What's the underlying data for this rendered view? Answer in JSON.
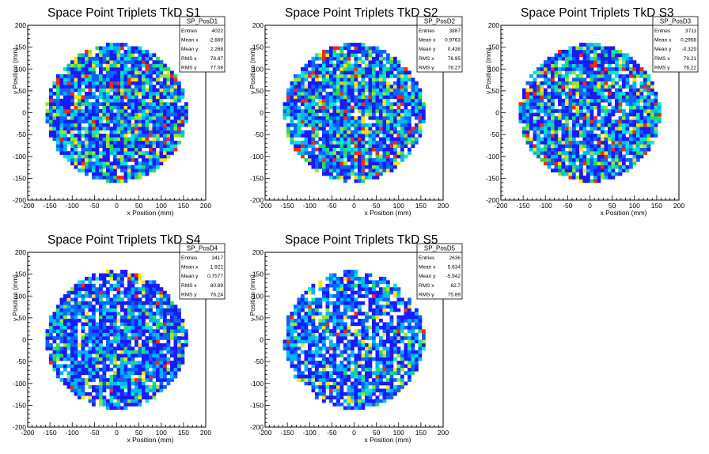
{
  "chart_data": [
    {
      "type": "heatmap",
      "title": "Space Point Triplets TkD S1",
      "xlabel": "x Position (mm)",
      "ylabel": "y Position (mm)",
      "xlim": [
        -200,
        200
      ],
      "ylim": [
        -200,
        200
      ],
      "xticks": [
        -200,
        -150,
        -100,
        -50,
        0,
        50,
        100,
        150,
        200
      ],
      "yticks": [
        -200,
        -150,
        -100,
        -50,
        0,
        50,
        100,
        150,
        200
      ],
      "stats": {
        "name": "SP_PosD1",
        "rows": [
          {
            "label": "Entries",
            "value": "4022"
          },
          {
            "label": "Mean x",
            "value": "-2.669"
          },
          {
            "label": "Mean y",
            "value": "2.268"
          },
          {
            "label": "RMS x",
            "value": "78.87"
          },
          {
            "label": "RMS y",
            "value": "77.08"
          }
        ]
      },
      "distribution": {
        "shape": "disk",
        "radius": 158,
        "bin_width": 8,
        "mean_x": -2.669,
        "mean_y": 2.268,
        "entries": 4022
      }
    },
    {
      "type": "heatmap",
      "title": "Space Point Triplets TkD S2",
      "xlabel": "x Position (mm)",
      "ylabel": "y Position (mm)",
      "xlim": [
        -200,
        200
      ],
      "ylim": [
        -200,
        200
      ],
      "xticks": [
        -200,
        -150,
        -100,
        -50,
        0,
        50,
        100,
        150,
        200
      ],
      "yticks": [
        -200,
        -150,
        -100,
        -50,
        0,
        50,
        100,
        150,
        200
      ],
      "stats": {
        "name": "SP_PosD2",
        "rows": [
          {
            "label": "Entries",
            "value": "3887"
          },
          {
            "label": "Mean x",
            "value": "0.9763"
          },
          {
            "label": "Mean y",
            "value": "0.438"
          },
          {
            "label": "RMS x",
            "value": "78.95"
          },
          {
            "label": "RMS y",
            "value": "76.27"
          }
        ]
      },
      "distribution": {
        "shape": "disk",
        "radius": 158,
        "bin_width": 8,
        "mean_x": 0.9763,
        "mean_y": 0.438,
        "entries": 3887
      }
    },
    {
      "type": "heatmap",
      "title": "Space Point Triplets TkD S3",
      "xlabel": "x Position (mm)",
      "ylabel": "y Position (mm)",
      "xlim": [
        -200,
        200
      ],
      "ylim": [
        -200,
        200
      ],
      "xticks": [
        -200,
        -150,
        -100,
        -50,
        0,
        50,
        100,
        150,
        200
      ],
      "yticks": [
        -200,
        -150,
        -100,
        -50,
        0,
        50,
        100,
        150,
        200
      ],
      "stats": {
        "name": "SP_PosD3",
        "rows": [
          {
            "label": "Entries",
            "value": "3711"
          },
          {
            "label": "Mean x",
            "value": "0.2958"
          },
          {
            "label": "Mean y",
            "value": "-0.329"
          },
          {
            "label": "RMS x",
            "value": "79.21"
          },
          {
            "label": "RMS y",
            "value": "76.22"
          }
        ]
      },
      "distribution": {
        "shape": "disk",
        "radius": 158,
        "bin_width": 8,
        "mean_x": 0.2958,
        "mean_y": -0.329,
        "entries": 3711
      }
    },
    {
      "type": "heatmap",
      "title": "Space Point Triplets TkD S4",
      "xlabel": "x Position (mm)",
      "ylabel": "y Position (mm)",
      "xlim": [
        -200,
        200
      ],
      "ylim": [
        -200,
        200
      ],
      "xticks": [
        -200,
        -150,
        -100,
        -50,
        0,
        50,
        100,
        150,
        200
      ],
      "yticks": [
        -200,
        -150,
        -100,
        -50,
        0,
        50,
        100,
        150,
        200
      ],
      "stats": {
        "name": "SP_PosD4",
        "rows": [
          {
            "label": "Entries",
            "value": "3417"
          },
          {
            "label": "Mean x",
            "value": "1.922"
          },
          {
            "label": "Mean y",
            "value": "0.7577"
          },
          {
            "label": "RMS x",
            "value": "80.89"
          },
          {
            "label": "RMS y",
            "value": "76.24"
          }
        ]
      },
      "distribution": {
        "shape": "disk",
        "radius": 158,
        "bin_width": 8,
        "mean_x": 1.922,
        "mean_y": 0.7577,
        "entries": 3417
      }
    },
    {
      "type": "heatmap",
      "title": "Space Point Triplets TkD S5",
      "xlabel": "x Position (mm)",
      "ylabel": "y Position (mm)",
      "xlim": [
        -200,
        200
      ],
      "ylim": [
        -200,
        200
      ],
      "xticks": [
        -200,
        -150,
        -100,
        -50,
        0,
        50,
        100,
        150,
        200
      ],
      "yticks": [
        -200,
        -150,
        -100,
        -50,
        0,
        50,
        100,
        150,
        200
      ],
      "stats": {
        "name": "SP_PosD5",
        "rows": [
          {
            "label": "Entries",
            "value": "2636"
          },
          {
            "label": "Mean x",
            "value": "5.634"
          },
          {
            "label": "Mean y",
            "value": "-5.942"
          },
          {
            "label": "RMS x",
            "value": "82.7"
          },
          {
            "label": "RMS y",
            "value": "75.89"
          }
        ]
      },
      "distribution": {
        "shape": "disk",
        "radius": 158,
        "bin_width": 8,
        "mean_x": 5.634,
        "mean_y": -5.942,
        "entries": 2636
      }
    }
  ],
  "colors": {
    "palette": [
      "#1a1aff",
      "#0a64ff",
      "#00b4ff",
      "#00e6d2",
      "#28dc5a",
      "#96e628",
      "#ffe600",
      "#ff2800"
    ],
    "frame": "#000000",
    "background": "#ffffff"
  }
}
